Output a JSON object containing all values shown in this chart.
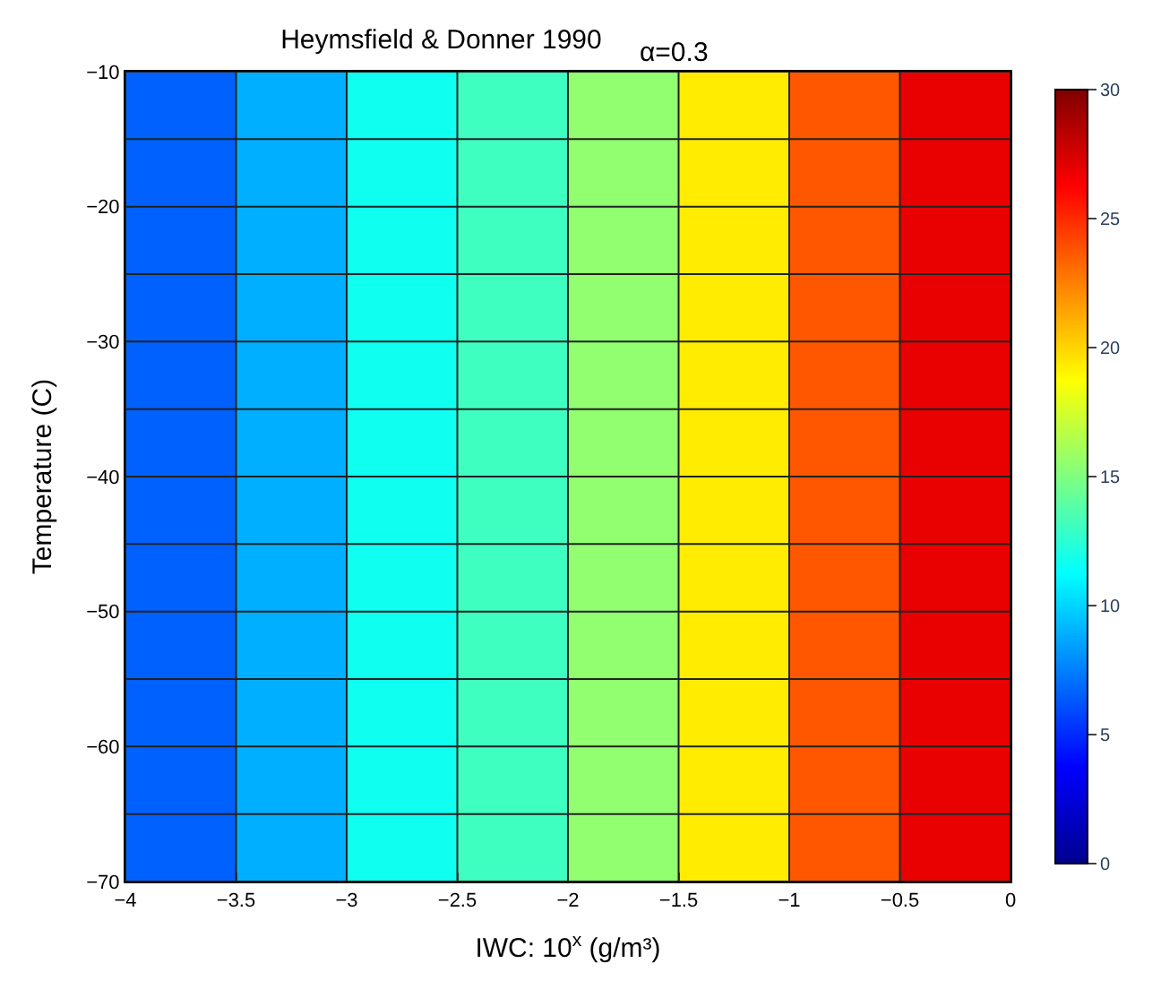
{
  "chart_data": {
    "type": "heatmap",
    "title": "Heymsfield & Donner 1990",
    "xlabel": "IWC: 10$^{x}$ (g/m³)",
    "ylabel": "Temperature (C)",
    "annotations": [
      "α=0.3"
    ],
    "x": [
      -3.75,
      -3.25,
      -2.75,
      -2.25,
      -1.75,
      -1.25,
      -0.75,
      -0.25
    ],
    "y": [
      -12.5,
      -17.5,
      -22.5,
      -27.5,
      -32.5,
      -37.5,
      -42.5,
      -47.5,
      -52.5,
      -57.5,
      -62.5,
      -67.5
    ],
    "cells": [
      [
        6.6,
        8.9,
        11.7,
        13.1,
        15.5,
        19.3,
        23.7,
        26.9
      ],
      [
        6.6,
        8.9,
        11.7,
        13.1,
        15.5,
        19.3,
        23.7,
        26.9
      ],
      [
        6.6,
        8.9,
        11.7,
        13.1,
        15.5,
        19.3,
        23.7,
        26.9
      ],
      [
        6.6,
        8.9,
        11.7,
        13.1,
        15.5,
        19.3,
        23.7,
        26.9
      ],
      [
        6.6,
        8.9,
        11.7,
        13.1,
        15.5,
        19.3,
        23.7,
        26.9
      ],
      [
        6.6,
        8.9,
        11.7,
        13.1,
        15.5,
        19.3,
        23.7,
        26.9
      ],
      [
        6.6,
        8.9,
        11.7,
        13.1,
        15.5,
        19.3,
        23.7,
        26.9
      ],
      [
        6.6,
        8.9,
        11.7,
        13.1,
        15.5,
        19.3,
        23.7,
        26.9
      ],
      [
        6.6,
        8.9,
        11.7,
        13.1,
        15.5,
        19.3,
        23.7,
        26.9
      ],
      [
        6.6,
        8.9,
        11.7,
        13.1,
        15.5,
        19.3,
        23.7,
        26.9
      ],
      [
        6.6,
        8.9,
        11.7,
        13.1,
        15.5,
        19.3,
        23.7,
        26.9
      ],
      [
        6.6,
        8.9,
        11.7,
        13.1,
        15.5,
        19.3,
        23.7,
        26.9
      ]
    ],
    "xlim": [
      -4,
      0
    ],
    "xticks": [
      {
        "value": -4,
        "label": "−4"
      },
      {
        "value": -3.5,
        "label": "−3.5"
      },
      {
        "value": -3,
        "label": "−3"
      },
      {
        "value": -2.5,
        "label": "−2.5"
      },
      {
        "value": -2,
        "label": "−2"
      },
      {
        "value": -1.5,
        "label": "−1.5"
      },
      {
        "value": -1,
        "label": "−1"
      },
      {
        "value": -0.5,
        "label": "−0.5"
      },
      0
    ],
    "ylim": [
      -70,
      -10
    ],
    "yticks": [
      {
        "value": -70,
        "label": "−70"
      },
      {
        "value": -60,
        "label": "−60"
      },
      {
        "value": -50,
        "label": "−50"
      },
      {
        "value": -40,
        "label": "−40"
      },
      {
        "value": -30,
        "label": "−30"
      },
      {
        "value": -20,
        "label": "−20"
      },
      {
        "value": -10,
        "label": "−10"
      }
    ],
    "clim": [
      0,
      30
    ],
    "cticks": [
      0,
      5,
      10,
      15,
      20,
      25,
      30
    ],
    "grid": true
  }
}
